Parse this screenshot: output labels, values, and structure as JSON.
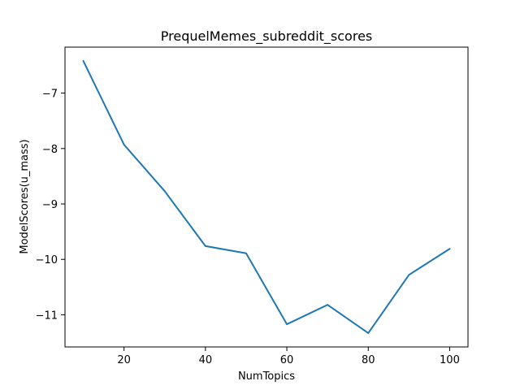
{
  "chart_data": {
    "type": "line",
    "title": "PrequelMemes_subreddit_scores",
    "xlabel": "NumTopics",
    "ylabel": "ModelScores(u_mass)",
    "x": [
      10,
      20,
      30,
      40,
      50,
      60,
      70,
      80,
      90,
      100
    ],
    "series": [
      {
        "values": [
          -6.42,
          -7.93,
          -8.77,
          -9.76,
          -9.89,
          -11.17,
          -10.82,
          -11.33,
          -10.28,
          -9.81
        ]
      }
    ],
    "xlim": [
      5.5,
      104.5
    ],
    "ylim": [
      -11.58,
      -6.17
    ],
    "xticks": [
      20,
      40,
      60,
      80,
      100
    ],
    "yticks": [
      -7,
      -8,
      -9,
      -10,
      -11
    ],
    "xtick_labels": [
      "20",
      "40",
      "60",
      "80",
      "100"
    ],
    "ytick_labels": [
      "−7",
      "−8",
      "−9",
      "−10",
      "−11"
    ],
    "grid": false,
    "line_color": "#1f77b4"
  }
}
